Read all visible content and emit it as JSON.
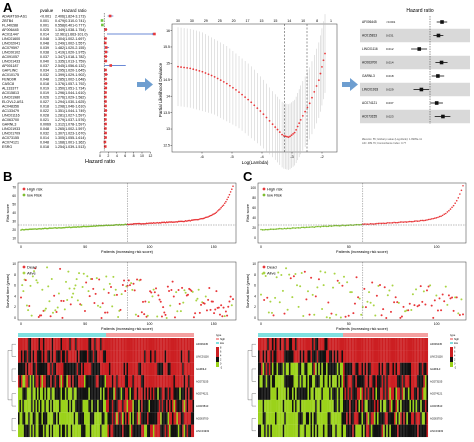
{
  "panels": {
    "A": "A",
    "B": "B",
    "C": "C"
  },
  "forest_a": {
    "col_headers": [
      "pvalue",
      "Hazard ratio"
    ],
    "genes": [
      "ADAMTS9-AS1",
      "ZBTB4",
      "FLJ40288",
      "AF006445",
      "AC011447",
      "LINC01600",
      "LINC02041",
      "AC079597",
      "LINC00102",
      "AC091057",
      "LINC01433",
      "AP001187",
      "GAPLINC",
      "AC010175",
      "FEND0R",
      "CASC8",
      "AL133377",
      "AC015813",
      "LINC01980",
      "ELOVL2-AS1",
      "AC048356",
      "AC133479",
      "LINC01116",
      "AC063700",
      "GARNL3",
      "LINC01933",
      "LINC01709",
      "AC073155",
      "AC074121",
      "ESRG"
    ],
    "pvalues": [
      "<0.001",
      "0.001",
      "0.001",
      "0.025",
      "0.014",
      "0.048",
      "0.048",
      "0.039",
      "0.038",
      "0.037",
      "0.040",
      "0.037",
      "0.034",
      "0.032",
      "0.048",
      "0.018",
      "0.019",
      "0.019",
      "0.026",
      "0.027",
      "0.018",
      "0.022",
      "0.028",
      "0.021",
      "0.0069",
      "0.048",
      "0.032",
      "0.014",
      "0.048",
      "0.018"
    ],
    "hr_texts": [
      "2.406(1.824-3.173)",
      "0.479(0.310-0.741)",
      "0.558(0.401-0.777)",
      "1.349(1.038-1.754)",
      "12.961(1.663-101.0)",
      "1.304(1.002-1.697)",
      "1.249(1.002-1.557)",
      "1.482(1.020-2.155)",
      "1.419(1.020-1.975)",
      "1.347(1.018-1.782)",
      "1.335(1.013-1.759)",
      "2.545(1.056-6.132)",
      "1.295(1.020-1.645)",
      "1.399(1.029-1.902)",
      "1.285(1.002-1.648)",
      "1.376(1.057-1.792)",
      "1.350(1.051-1.734)",
      "1.296(1.044-1.610)",
      "1.276(1.029-1.582)",
      "1.294(1.030-1.625)",
      "1.298(1.046-1.610)",
      "1.351(1.044-1.749)",
      "1.281(1.027-1.597)",
      "1.279(1.037-1.576)",
      "1.312(1.078-1.597)",
      "1.265(1.002-1.597)",
      "1.307(1.023-1.670)",
      "1.305(1.055-1.614)",
      "1.168(1.001-1.362)",
      "1.254(1.039-1.513)"
    ],
    "hr": [
      2.41,
      0.48,
      0.56,
      1.35,
      12.96,
      1.3,
      1.25,
      1.48,
      1.42,
      1.35,
      1.34,
      2.55,
      1.3,
      1.4,
      1.29,
      1.38,
      1.35,
      1.3,
      1.28,
      1.29,
      1.3,
      1.35,
      1.28,
      1.28,
      1.31,
      1.27,
      1.31,
      1.31,
      1.17,
      1.25
    ],
    "lo": [
      1.82,
      0.31,
      0.4,
      1.04,
      1.66,
      1.0,
      1.0,
      1.02,
      1.02,
      1.02,
      1.01,
      1.06,
      1.02,
      1.03,
      1.0,
      1.06,
      1.05,
      1.04,
      1.03,
      1.03,
      1.05,
      1.04,
      1.03,
      1.04,
      1.08,
      1.0,
      1.02,
      1.06,
      1.0,
      1.04
    ],
    "hi": [
      3.17,
      0.74,
      0.78,
      1.75,
      101.0,
      1.7,
      1.56,
      2.16,
      1.98,
      1.78,
      1.76,
      6.13,
      1.65,
      1.9,
      1.65,
      1.79,
      1.73,
      1.61,
      1.58,
      1.63,
      1.61,
      1.75,
      1.6,
      1.58,
      1.6,
      1.6,
      1.67,
      1.61,
      1.36,
      1.51
    ],
    "xlabel": "Hazard ratio",
    "xticks": [
      "0",
      "2",
      "4",
      "6",
      "8",
      "10",
      "12"
    ]
  },
  "lasso": {
    "top_ticks": [
      "30",
      "30",
      "29",
      "25",
      "20",
      "17",
      "15",
      "15",
      "14",
      "10",
      "8",
      "1"
    ],
    "x_ticks": [
      "-6",
      "-5",
      "-4",
      "-3",
      "-2"
    ],
    "y_ticks": [
      "12.5",
      "13",
      "13.5",
      "14",
      "14.5",
      "15",
      "15.5",
      "16"
    ],
    "xlabel": "Log(Lambda)",
    "ylabel": "Partial Likelihood Deviance",
    "x": [
      -6.8,
      -6.4,
      -6.0,
      -5.6,
      -5.2,
      -4.8,
      -4.4,
      -4.0,
      -3.6,
      -3.3,
      -3.1,
      -2.9,
      -2.7,
      -2.4,
      -2.1,
      -1.9
    ],
    "y": [
      14.9,
      14.85,
      14.75,
      14.6,
      14.4,
      14.15,
      13.85,
      13.5,
      13.1,
      12.8,
      12.75,
      12.9,
      13.3,
      13.8,
      14.5,
      15.3
    ],
    "err": [
      1.2,
      1.2,
      1.2,
      1.15,
      1.15,
      1.1,
      1.1,
      1.05,
      1.0,
      1.0,
      1.0,
      1.0,
      1.05,
      1.1,
      1.15,
      1.2
    ],
    "xlim": [
      -7,
      -1.5
    ],
    "ylim": [
      12.3,
      16.2
    ]
  },
  "forest_multi": {
    "title": "Hazard ratio",
    "genes": [
      "AF006445",
      "AC015813",
      "LINC01116",
      "AC063700",
      "GARNL3",
      "LINC01933",
      "AC074121",
      "AC073155"
    ],
    "pvalues": [
      "<0.001",
      "0.031",
      "0.012",
      "0.014",
      "0.018",
      "0.029",
      "0.037",
      "0.023"
    ],
    "hr": [
      1.95,
      1.6,
      0.55,
      1.9,
      1.55,
      0.62,
      1.45,
      2.05
    ],
    "lo": [
      1.45,
      1.2,
      0.35,
      1.35,
      1.1,
      0.4,
      1.02,
      1.3
    ],
    "hi": [
      2.6,
      2.1,
      0.85,
      2.65,
      2.2,
      0.95,
      2.05,
      3.1
    ],
    "footnote_1": "#Events: 55; Global p-value (Log-Rank): 1.9905e-11",
    "footnote_2": "AIC: 489.79; Concordance Index: 0.77"
  },
  "risk_score_b": {
    "ylabel": "Risk score",
    "xlabel": "Patients (increasing risk score)",
    "y_ticks": [
      "10",
      "20",
      "30",
      "40",
      "50",
      "60",
      "70"
    ],
    "x_ticks": [
      "0",
      "50",
      "100",
      "150"
    ],
    "legend": [
      "High risk",
      "low Risk"
    ],
    "colors": {
      "high": "#e8373a",
      "low": "#7dbd2f"
    }
  },
  "survival_b": {
    "ylabel": "Survival time (years)",
    "xlabel": "Patients (increasing risk score)",
    "y_ticks": [
      "0",
      "2",
      "4",
      "6",
      "8",
      "10"
    ],
    "x_ticks": [
      "0",
      "50",
      "100",
      "150"
    ],
    "legend": [
      "Dead",
      "Alive"
    ],
    "colors": {
      "dead": "#e8373a",
      "alive": "#a9d444"
    }
  },
  "risk_score_c": {
    "ylabel": "Risk score",
    "xlabel": "Patients (increasing risk score)",
    "y_ticks": [
      "0",
      "20",
      "40",
      "60",
      "80",
      "100"
    ],
    "x_ticks": [
      "0",
      "50",
      "100"
    ],
    "legend": [
      "High risk",
      "low Risk"
    ]
  },
  "survival_c": {
    "ylabel": "Survival time (years)",
    "xlabel": "Patients (increasing risk score)",
    "y_ticks": [
      "0",
      "2",
      "4",
      "6",
      "8",
      "10"
    ],
    "x_ticks": [
      "0",
      "50",
      "100"
    ],
    "legend": [
      "Dead",
      "Alive"
    ]
  },
  "heatmap": {
    "genes": [
      "AF006445",
      "LINC01116",
      "GARNL3",
      "AC073155",
      "AC074121",
      "AC015813",
      "AC063700",
      "LINC01933"
    ],
    "legend_title": "type",
    "legend_types": [
      "high",
      "low"
    ],
    "scale_ticks": [
      "8",
      "6",
      "4",
      "2",
      "0",
      "-2"
    ],
    "colors": {
      "high": "#cc1f22",
      "mid": "#111111",
      "low": "#9bd21a",
      "band_high": "#f4a0a0",
      "band_low": "#7fe0e0"
    }
  }
}
